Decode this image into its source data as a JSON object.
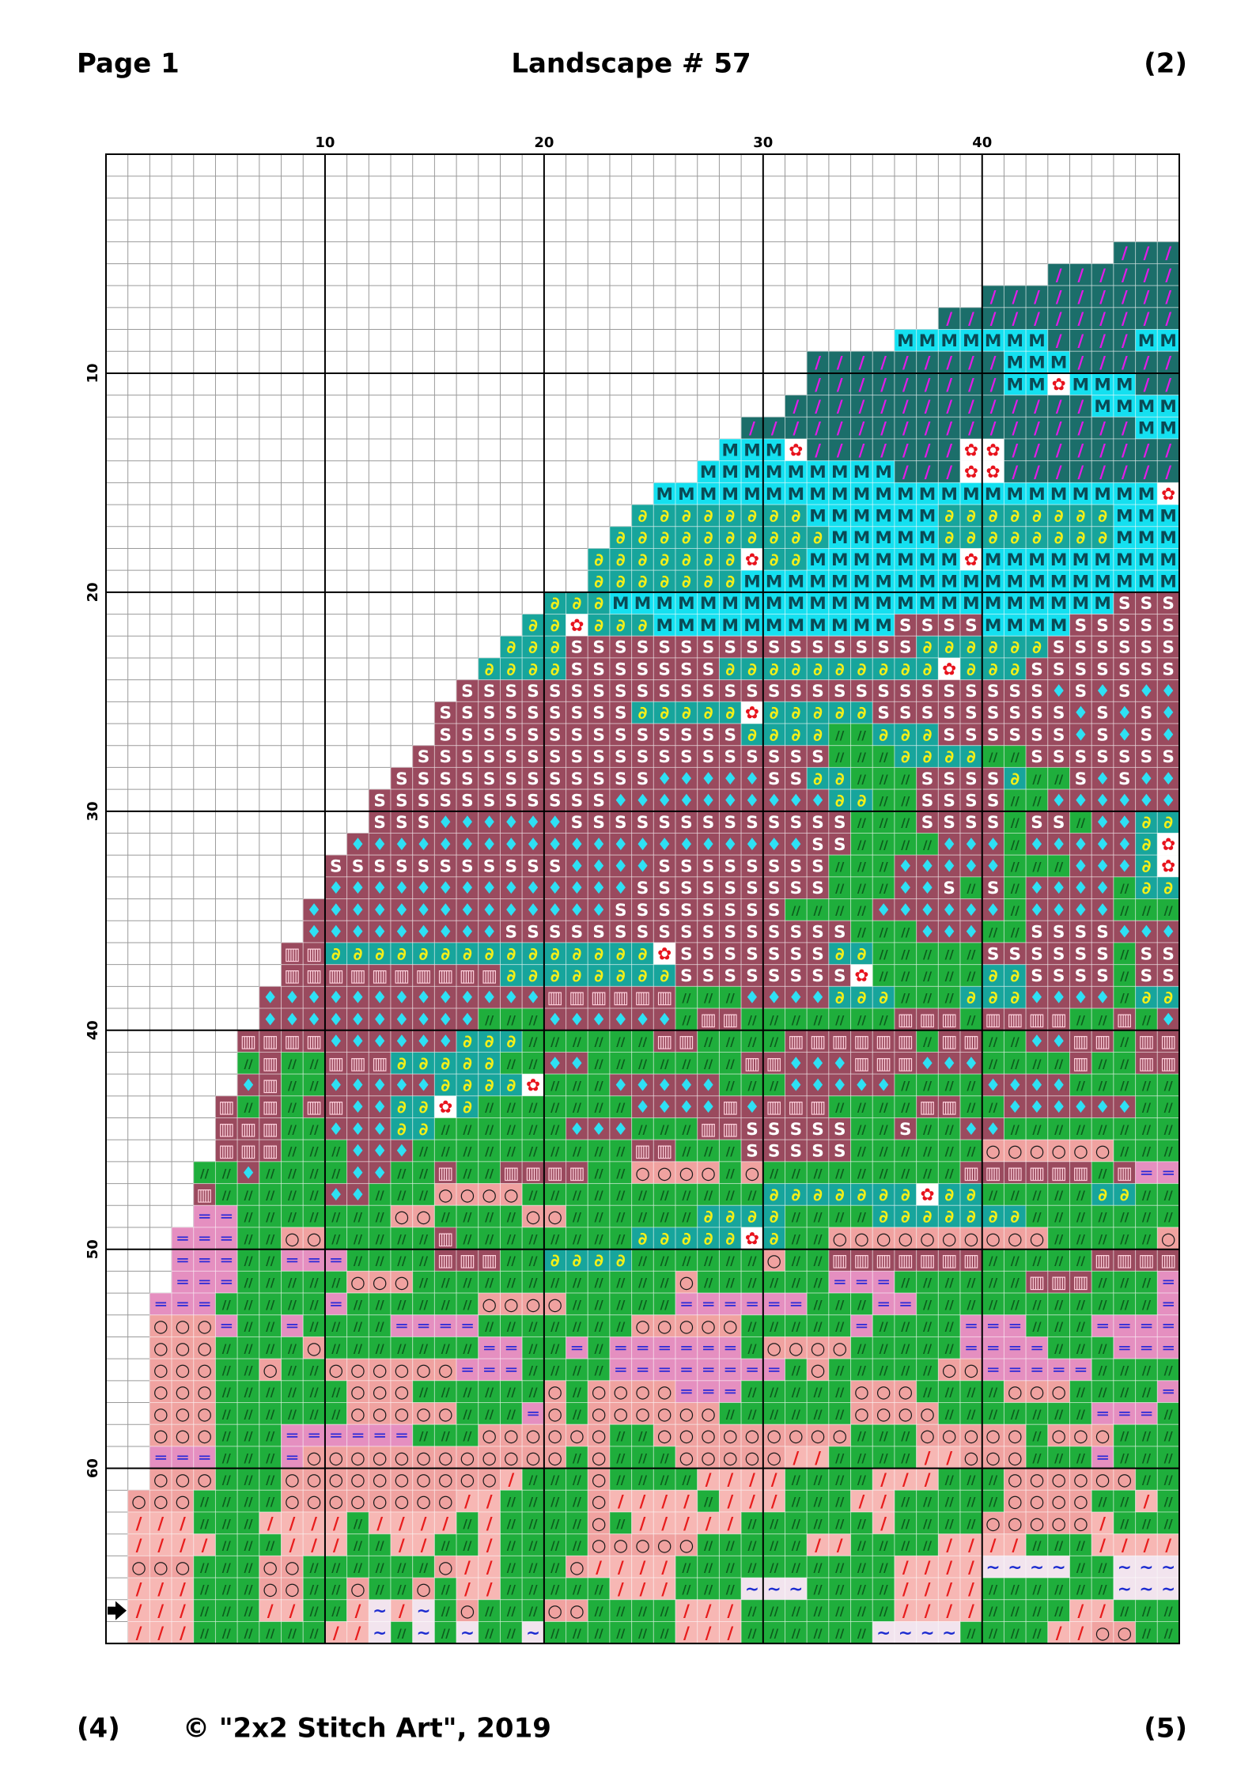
{
  "header": {
    "left": "Page 1",
    "title": "Landscape # 57",
    "right": "(2)"
  },
  "footer": {
    "left": "(4)",
    "center": "© \"2x2 Stitch Art\", 2019",
    "right": "(5)"
  },
  "symbols": {
    "P": {
      "bg": "#1b6e6a",
      "fg": "#e21ce8",
      "glyph": "/"
    },
    "M": {
      "bg": "#14e0f0",
      "fg": "#0a4a55",
      "glyph": "M"
    },
    "F": {
      "bg": "#ffffff",
      "fg": "#e8121c",
      "glyph": "✿"
    },
    "Y": {
      "bg": "#17a59c",
      "fg": "#f4f018",
      "glyph": "∂"
    },
    "S": {
      "bg": "#9a4a5e",
      "fg": "#ffffff",
      "glyph": "S"
    },
    "D": {
      "bg": "#9a4a5e",
      "fg": "#2ee0f4",
      "glyph": "♦"
    },
    "G": {
      "bg": "#1fae3c",
      "fg": "#0c5a1c",
      "glyph": "//"
    },
    "W": {
      "bg": "#9a4a5e",
      "fg": "#ffd0dc",
      "glyph": "▥"
    },
    "O": {
      "bg": "#f0a2a0",
      "fg": "#1a1a1a",
      "glyph": "○"
    },
    "E": {
      "bg": "#e58fc0",
      "fg": "#2a2ad8",
      "glyph": "═"
    },
    "L": {
      "bg": "#f7b7b4",
      "fg": "#e81c1c",
      "glyph": "/"
    },
    "T": {
      "bg": "#f2e4ee",
      "fg": "#1a2ad0",
      "glyph": "~"
    }
  },
  "grid": {
    "xlim": [
      0,
      49
    ],
    "ylim": [
      0,
      68
    ],
    "xticks": [
      10,
      20,
      30,
      40
    ],
    "yticks": [
      10,
      20,
      30,
      40,
      50,
      60
    ],
    "arrow_row": 67,
    "rows": [
      ".",
      ".",
      ".",
      ".",
      "PPP",
      "PPPPPP",
      "PPPPPPPPP",
      "PPPPPPPPPPP",
      "MMMMMMMPPPPMM",
      "PPPPPPPPPMMMPPPPP",
      "PPPPPPPPPMMFMMMPP",
      "PPPPPPPPPPPPPPMMMM",
      "PPPPPPPPPPPPPPPPPPMM",
      "MMMFPPPPPPPFFPPPPPPPP",
      "MMMMMMMMMPPPFFPPPPPPPP",
      "MMMMMMMMMMMMMMMMMMMMMMMF",
      "YYYYYYYYMMMMMMYYYYYYYYMMM",
      "YYYYYYYYYYMMMMMYYYYYYYYMMM",
      "YYYYYYYFYYMMMMMMMFMMMMMMMMM",
      "YYYYYYYMMMMMMMMMMMMMMMMMMMM",
      "YYYMMMMMMMMMMMMMMMMMMMMMMMSSS",
      "YYFYYYMMMMMMMMMMMSSSSMMMMSSSSS",
      "YYYSSSSSSSSSSSSSSSSYYYYYYSSSSSS",
      "YYYYSSSSSSSYYYYYYYYYYFYYYSSSSSSS",
      "SSSSSSSSSSSSSSSSSSSSSSSSSSSDSDSDD",
      "SSSSSSSSSYYYYYFYYYYYSSSSSSSSSDSDSD",
      "SSSSSSSSSSSSSSYYYYGGYYYSSSSSSDSDSD",
      "SSSSSSSSSSSSSSSSSSSGGGYYYYGGSSSSSSS",
      "SSSSSSSSSSSSDDDDDSSYYGGGSSSSYGGSDSDD",
      "SSSSSSSSSSSDDDDDDDDDDYYGGSSSSGGDDDDDD",
      "SSSDDDDDDSSSSSSSSSSSSSGGGSSSSGSSGDDYY",
      "DDDDDDDDDDDDDDDDDDDDDSSGGGGDDDGDDDDDYF",
      "SSSSSSSSSSSDDDDSSSSSSSSGGGDDDDDGGGDDDYF",
      "DDDDDDDDDDDDDDSSSSSSSSSGGGDDSGSGDDDDGYY",
      "DDDDDDDDDDDDDDSSSSSSSSGGGGDDDDDDGDDDDGGG",
      "DDDDDDDDDSSSSSSSSSSSSSSSSGGGDDDGGSSSSDDD",
      "WWYYYYYYYYYYYYYYYFSSSSSSSYYGGGGGSSSSSSGSS",
      "WWWWWWWWWWYYYYYYYYSSSSSSSSFGGGGGYYSSSSGSS",
      "DDDDDDDDDDDDDWWWWWWGGGDDDDYYYGGGYYYDDDDGYY",
      "DDDDDDDDDDGGGDDDDDDGWWGGGGGGGWWWGWWWWGGWGD",
      "WWWWDDDDDDYYYGGGGGGWWGGGGWWWWWWGWWGGDDWWGWW",
      "GWGGWWWYYYYYGGDDGGGGGGGWWDDDWWWDDDGGGGWGGWW",
      "DWGGDDDDDYYYYFGGGDDDDDGGGDDDDDGGGGDDDDGGGGG",
      "WGWGWWDDYYFYGGGGGGGDDDDWDWWWGGGGWWGGDDDDDDGG",
      "WWWGGDDDYYGGGGGGDDDGGGWWSSSSSGGSGGDDGGGGGGGG",
      "WWWGGGDDDGGGGGGGGGGWWGGGSSSSSGGGGGGOOOOOOGGG",
      "GGDGGGGDDGGWGGWWWWGGOOOOGOGGGGGGGGGWWWWWWGWEE",
      "WGGGGGDDGGGOOOOGGGGGGGGGGGYYYYYYYFYYGGGGGYYGG",
      "EEGGGGGGGOOGGGGOOGGGGGGYYYYGGGGYYYYYYYGGGGGGG",
      "EEEGGOOGGGGGWGGGGGGGGYYYYYFYGGOOOOOOOOOOGGGGGO",
      "EEEGGEEEGGGGWWWGGYYYYGGGGGGOGGWWWWWWWGGGGGWWWW",
      "EEEGGGGGOOOGGGGGGGGGGGGOGGGGGGEEEGGGGGGWWWGGGE",
      "EEEGGGGGEGGGGGGOOOOGGGGGEEEEEEGGGEEGGGGGGGGGGGE",
      "OOOEGGEGGGGEEEEGGGGGGGOOOOOGGGGGEGGGGEEEGGGEEEE",
      "OOOGGGGOGGGGGGGEEGGEGEEEEEEGOOOOGGGGGEEEEGGGEEE",
      "OOOGGOGGOOOOOOEEEGGGGEEEEEEEEGOGGGGGOOEEEEEGGGG",
      "OOOGGGGGGOOOGGGGGGOGOOOOEEEGGGGGOOOGGGGOOOGGGGE",
      "OOOGGGGGGOOOOOGGGEOGOOOOOOGGGGGGOOOOGGGGGGGEEEG",
      "OOOGGGEEEEEEGGGOOOOOOGGOOOOOOOOOGGGOOOOOGOOOGGG",
      "EEEGGGEOOOOOOOOOOOOGOGGGOOOOOLLGGGGLLOOOGGGEGGG",
      "OOOGGGOOOOOOOOOOLGGGOGGGGLLLLGGGGLLLGGGOOOOOOGG",
      "OOOGGGGOOOOOOOOLLGGGGOLLLLGLLLGGGLLGGGGGOOOOGGLG",
      "LLLGGGLLLLGLLLLGLGGGGOGLLLLLGGGGGGLGGGGOOOOOLGGG",
      "LLLLGGGLLLGGLLGGLGGGGOOOOOGGGGGLLGGGGLLLLGGGLLLL",
      "OOOGGGOOGGGGGGOLLGGGOLLLLGGGGGGGGGGLLLLTTTTGGTTT",
      "LLLGGGOOGGOGGOGLLGGGGGLLLGGGTTTGGGGLLLLGGGGGGTTT",
      "LLLGGGLLGGLTLTGOGGGOOGGGGLLLGGGGGGGLLLLGGGGLLGGG",
      "LLLGGGGGGLLTGTGTGGTGGGGGGLLLGGGGGGTTTTGGGGLLOOGG"
    ]
  }
}
